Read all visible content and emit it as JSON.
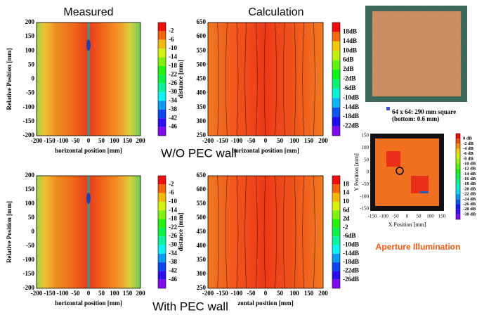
{
  "panels": [
    {
      "title": "Measured",
      "x_label": "horizontal position [mm]",
      "y_label": "Relative Position [mm]",
      "x_ticks": [
        "-200",
        "-150",
        "-100",
        "-50",
        "0",
        "50",
        "100",
        "150",
        "200"
      ],
      "y_ticks": [
        "200",
        "150",
        "100",
        "50",
        "0",
        "-50",
        "-100",
        "-150",
        "-200"
      ],
      "colorbar_labels": [
        "-2",
        "-6",
        "-10",
        "-14",
        "-18",
        "-22",
        "-26",
        "-30",
        "-34",
        "-38",
        "-42",
        "-46"
      ]
    },
    {
      "title": "Calculation",
      "x_label": "horizontal position [mm]",
      "y_label": "distance [mm]",
      "x_ticks": [
        "-200",
        "-150",
        "-100",
        "-50",
        "0",
        "50",
        "100",
        "150",
        "200"
      ],
      "y_ticks": [
        "650",
        "600",
        "550",
        "500",
        "450",
        "400",
        "350",
        "300",
        "250"
      ],
      "colorbar_labels": [
        "18dB",
        "14dB",
        "10dB",
        "6dB",
        "2dB",
        "-2dB",
        "-6dB",
        "-10dB",
        "-14dB",
        "-18dB",
        "-22dB"
      ]
    },
    {
      "x_label": "horizontal position [mm]",
      "y_label": "Relative Position [mm]",
      "x_ticks": [
        "-200",
        "-150",
        "-100",
        "-50",
        "0",
        "50",
        "100",
        "150",
        "200"
      ],
      "y_ticks": [
        "200",
        "150",
        "100",
        "50",
        "0",
        "-50",
        "-100",
        "-150",
        "-200"
      ],
      "colorbar_labels": [
        "-2",
        "-6",
        "-10",
        "-14",
        "-18",
        "-22",
        "-26",
        "-30",
        "-34",
        "-38",
        "-42",
        "-46"
      ]
    },
    {
      "x_label": "zontal position [mm]",
      "y_label": "distance [mm]",
      "x_ticks": [
        "-200",
        "-150",
        "-100",
        "-50",
        "0",
        "50",
        "100",
        "150",
        "200"
      ],
      "y_ticks": [
        "650",
        "600",
        "550",
        "500",
        "450",
        "400",
        "350",
        "300",
        "250"
      ],
      "colorbar_labels": [
        "18",
        "14",
        "10",
        "6d",
        "2d",
        "-2",
        "-6dB",
        "-10dB",
        "-14dB",
        "-18dB",
        "-22dB",
        "-26dB"
      ]
    }
  ],
  "captions": {
    "without": "W/O PEC wall",
    "with": "With PEC wall"
  },
  "photo_caption": [
    "64 x 64: 290 mm square",
    "(bottom: 0.6 mm)"
  ],
  "aperture": {
    "title": "Aperture Illumination",
    "x_label": "X Position [mm]",
    "y_label": "Y Position [mm]",
    "x_ticks": [
      "-150",
      "-100",
      "-50",
      "0",
      "50",
      "100",
      "150"
    ],
    "y_ticks": [
      "150",
      "100",
      "50",
      "0",
      "-50",
      "-100",
      "-150"
    ],
    "colorbar_labels": [
      "0 dB",
      "-2 dB",
      "-4 dB",
      "-6 dB",
      "-8 dB",
      "-10 dB",
      "-12 dB",
      "-14 dB",
      "-16 dB",
      "-18 dB",
      "-20 dB",
      "-22 dB",
      "-24 dB",
      "-26 dB",
      "-28 dB",
      "-30 dB"
    ]
  }
}
